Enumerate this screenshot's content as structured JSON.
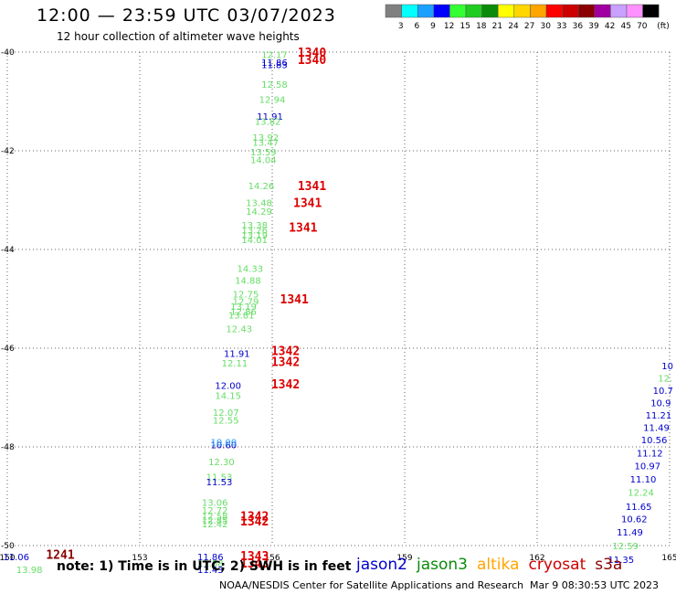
{
  "header": {
    "title": "12:00 — 23:59 UTC 03/07/2023",
    "subtitle": "12 hour collection of altimeter wave heights"
  },
  "legend": {
    "bins": [
      {
        "label": "3",
        "color": "#808080"
      },
      {
        "label": "6",
        "color": "#00ffff"
      },
      {
        "label": "9",
        "color": "#1ca0ff"
      },
      {
        "label": "12",
        "color": "#0000ff"
      },
      {
        "label": "15",
        "color": "#33ff33"
      },
      {
        "label": "18",
        "color": "#1fcc1f"
      },
      {
        "label": "21",
        "color": "#0a8c0a"
      },
      {
        "label": "24",
        "color": "#ffff00"
      },
      {
        "label": "27",
        "color": "#ffd700"
      },
      {
        "label": "30",
        "color": "#ffa500"
      },
      {
        "label": "33",
        "color": "#ff0000"
      },
      {
        "label": "36",
        "color": "#cc0000"
      },
      {
        "label": "39",
        "color": "#8b0000"
      },
      {
        "label": "42",
        "color": "#a000a0"
      },
      {
        "label": "45",
        "color": "#c8a0ff"
      },
      {
        "label": "70",
        "color": "#ff90ff"
      },
      {
        "label": "",
        "color": "#000000"
      }
    ],
    "unit": "(ft)"
  },
  "chart_data": {
    "type": "scatter",
    "xlim": [
      150,
      165
    ],
    "ylim": [
      -50,
      -40
    ],
    "x_ticks": [
      {
        "v": 150,
        "label": "150"
      },
      {
        "v": 153,
        "label": "153"
      },
      {
        "v": 156,
        "label": "156"
      },
      {
        "v": 159,
        "label": "159"
      },
      {
        "v": 162,
        "label": "162"
      },
      {
        "v": 165,
        "label": "165"
      }
    ],
    "y_ticks": [
      {
        "v": -40,
        "label": "-40"
      },
      {
        "v": -42,
        "label": "-42"
      },
      {
        "v": -44,
        "label": "-44"
      },
      {
        "v": -46,
        "label": "-46"
      },
      {
        "v": -48,
        "label": "-48"
      },
      {
        "v": -50,
        "label": "-50"
      }
    ],
    "grid": true,
    "wave_labels": [
      {
        "x": 156.05,
        "y": -40.05,
        "text": "12.17",
        "color": "#66dd66"
      },
      {
        "x": 156.05,
        "y": -40.2,
        "text": "11.86",
        "color": "#0000cc"
      },
      {
        "x": 156.05,
        "y": -40.25,
        "text": "11.83",
        "color": "#0000cc"
      },
      {
        "x": 156.05,
        "y": -40.65,
        "text": "12.58",
        "color": "#66dd66"
      },
      {
        "x": 156.0,
        "y": -40.95,
        "text": "12.94",
        "color": "#66dd66"
      },
      {
        "x": 155.95,
        "y": -41.3,
        "text": "11.91",
        "color": "#0000cc"
      },
      {
        "x": 155.9,
        "y": -41.4,
        "text": "13.82",
        "color": "#66dd66"
      },
      {
        "x": 155.85,
        "y": -41.72,
        "text": "13.92",
        "color": "#66dd66"
      },
      {
        "x": 155.85,
        "y": -41.82,
        "text": "13.47",
        "color": "#66dd66"
      },
      {
        "x": 155.8,
        "y": -42.02,
        "text": "13.59",
        "color": "#66dd66"
      },
      {
        "x": 155.8,
        "y": -42.18,
        "text": "14.04",
        "color": "#66dd66"
      },
      {
        "x": 155.75,
        "y": -42.7,
        "text": "14.26",
        "color": "#66dd66"
      },
      {
        "x": 155.7,
        "y": -43.05,
        "text": "13.48",
        "color": "#66dd66"
      },
      {
        "x": 155.7,
        "y": -43.22,
        "text": "14.29",
        "color": "#66dd66"
      },
      {
        "x": 155.6,
        "y": -43.5,
        "text": "13.38",
        "color": "#66dd66"
      },
      {
        "x": 155.6,
        "y": -43.6,
        "text": "13.26",
        "color": "#66dd66"
      },
      {
        "x": 155.6,
        "y": -43.7,
        "text": "13.19",
        "color": "#66dd66"
      },
      {
        "x": 155.6,
        "y": -43.8,
        "text": "14.01",
        "color": "#66dd66"
      },
      {
        "x": 155.5,
        "y": -44.38,
        "text": "14.33",
        "color": "#66dd66"
      },
      {
        "x": 155.45,
        "y": -44.62,
        "text": "14.88",
        "color": "#66dd66"
      },
      {
        "x": 155.4,
        "y": -44.9,
        "text": "12.75",
        "color": "#66dd66"
      },
      {
        "x": 155.4,
        "y": -45.05,
        "text": "12.79",
        "color": "#66dd66"
      },
      {
        "x": 155.35,
        "y": -45.15,
        "text": "13.19",
        "color": "#66dd66"
      },
      {
        "x": 155.35,
        "y": -45.25,
        "text": "12.86",
        "color": "#66dd66"
      },
      {
        "x": 155.3,
        "y": -45.32,
        "text": "13.81",
        "color": "#66dd66"
      },
      {
        "x": 155.25,
        "y": -45.6,
        "text": "12.43",
        "color": "#66dd66"
      },
      {
        "x": 155.2,
        "y": -46.1,
        "text": "11.91",
        "color": "#0000cc"
      },
      {
        "x": 155.15,
        "y": -46.3,
        "text": "12.11",
        "color": "#66dd66"
      },
      {
        "x": 155.0,
        "y": -46.75,
        "text": "12.00",
        "color": "#0000cc"
      },
      {
        "x": 155.0,
        "y": -46.95,
        "text": "14.15",
        "color": "#66dd66"
      },
      {
        "x": 154.95,
        "y": -47.3,
        "text": "12.07",
        "color": "#66dd66"
      },
      {
        "x": 154.95,
        "y": -47.45,
        "text": "12.55",
        "color": "#66dd66"
      },
      {
        "x": 154.9,
        "y": -47.95,
        "text": "10.60",
        "color": "#0000cc"
      },
      {
        "x": 154.9,
        "y": -47.9,
        "text": "10.00",
        "color": "#1ca0ff"
      },
      {
        "x": 154.85,
        "y": -48.3,
        "text": "12.30",
        "color": "#66dd66"
      },
      {
        "x": 154.8,
        "y": -48.6,
        "text": "11.53",
        "color": "#66dd66"
      },
      {
        "x": 154.8,
        "y": -48.7,
        "text": "11.53",
        "color": "#0000cc"
      },
      {
        "x": 154.7,
        "y": -49.12,
        "text": "13.06",
        "color": "#66dd66"
      },
      {
        "x": 154.7,
        "y": -49.28,
        "text": "12.72",
        "color": "#66dd66"
      },
      {
        "x": 154.7,
        "y": -49.4,
        "text": "12.58",
        "color": "#66dd66"
      },
      {
        "x": 154.7,
        "y": -49.48,
        "text": "12.85",
        "color": "#66dd66"
      },
      {
        "x": 154.7,
        "y": -49.56,
        "text": "12.42",
        "color": "#66dd66"
      },
      {
        "x": 154.6,
        "y": -50.22,
        "text": "11.86",
        "color": "#0000cc"
      },
      {
        "x": 154.6,
        "y": -50.35,
        "text": "11.58",
        "color": "#66dd66"
      },
      {
        "x": 154.6,
        "y": -50.48,
        "text": "11.43",
        "color": "#0000cc"
      },
      {
        "x": 150.2,
        "y": -50.22,
        "text": "11.06",
        "color": "#0000cc"
      },
      {
        "x": 150.5,
        "y": -50.48,
        "text": "13.98",
        "color": "#66dd66"
      },
      {
        "x": 164.95,
        "y": -46.35,
        "text": "10",
        "color": "#0000cc"
      },
      {
        "x": 164.9,
        "y": -46.6,
        "text": "12.",
        "color": "#66dd66"
      },
      {
        "x": 164.85,
        "y": -46.85,
        "text": "10.7",
        "color": "#0000cc"
      },
      {
        "x": 164.8,
        "y": -47.1,
        "text": "10.9",
        "color": "#0000cc"
      },
      {
        "x": 164.75,
        "y": -47.35,
        "text": "11.21",
        "color": "#0000cc"
      },
      {
        "x": 164.7,
        "y": -47.6,
        "text": "11.49",
        "color": "#0000cc"
      },
      {
        "x": 164.65,
        "y": -47.85,
        "text": "10.56",
        "color": "#0000cc"
      },
      {
        "x": 164.55,
        "y": -48.12,
        "text": "11.12",
        "color": "#0000cc"
      },
      {
        "x": 164.5,
        "y": -48.38,
        "text": "10.97",
        "color": "#0000cc"
      },
      {
        "x": 164.4,
        "y": -48.65,
        "text": "11.10",
        "color": "#0000cc"
      },
      {
        "x": 164.35,
        "y": -48.92,
        "text": "12.24",
        "color": "#66dd66"
      },
      {
        "x": 164.3,
        "y": -49.2,
        "text": "11.65",
        "color": "#0000cc"
      },
      {
        "x": 164.2,
        "y": -49.45,
        "text": "10.62",
        "color": "#0000cc"
      },
      {
        "x": 164.1,
        "y": -49.72,
        "text": "11.49",
        "color": "#0000cc"
      },
      {
        "x": 164.0,
        "y": -50.0,
        "text": "12.59",
        "color": "#66dd66"
      },
      {
        "x": 163.9,
        "y": -50.28,
        "text": "11.35",
        "color": "#0000cc"
      }
    ],
    "time_labels": [
      {
        "x": 156.9,
        "y": -40.0,
        "text": "1340"
      },
      {
        "x": 156.9,
        "y": -40.15,
        "text": "1340"
      },
      {
        "x": 156.9,
        "y": -42.7,
        "text": "1341"
      },
      {
        "x": 156.8,
        "y": -43.05,
        "text": "1341"
      },
      {
        "x": 156.7,
        "y": -43.55,
        "text": "1341"
      },
      {
        "x": 156.5,
        "y": -45.0,
        "text": "1341"
      },
      {
        "x": 156.3,
        "y": -46.05,
        "text": "1342"
      },
      {
        "x": 156.3,
        "y": -46.27,
        "text": "1342"
      },
      {
        "x": 156.3,
        "y": -46.72,
        "text": "1342"
      },
      {
        "x": 155.6,
        "y": -49.4,
        "text": "1342"
      },
      {
        "x": 155.6,
        "y": -49.5,
        "text": "1342"
      },
      {
        "x": 155.6,
        "y": -50.2,
        "text": "1343"
      },
      {
        "x": 155.6,
        "y": -50.35,
        "text": "1343"
      },
      {
        "x": 151.2,
        "y": -50.18,
        "text": "1241",
        "color": "#8b0000"
      }
    ]
  },
  "note": "note: 1) Time is in UTC; 2) SWH is in feet",
  "satellites": [
    {
      "name": "jason2",
      "color": "#0000cc"
    },
    {
      "name": "jason3",
      "color": "#0a8c0a"
    },
    {
      "name": "altika",
      "color": "#ffa500"
    },
    {
      "name": "cryosat",
      "color": "#cc0000"
    },
    {
      "name": "s3a",
      "color": "#8b0000"
    }
  ],
  "footer": {
    "left": "NOAA/NESDIS Center for Satellite Applications and Research",
    "right": "Mar  9 08:30:53 UTC 2023"
  }
}
